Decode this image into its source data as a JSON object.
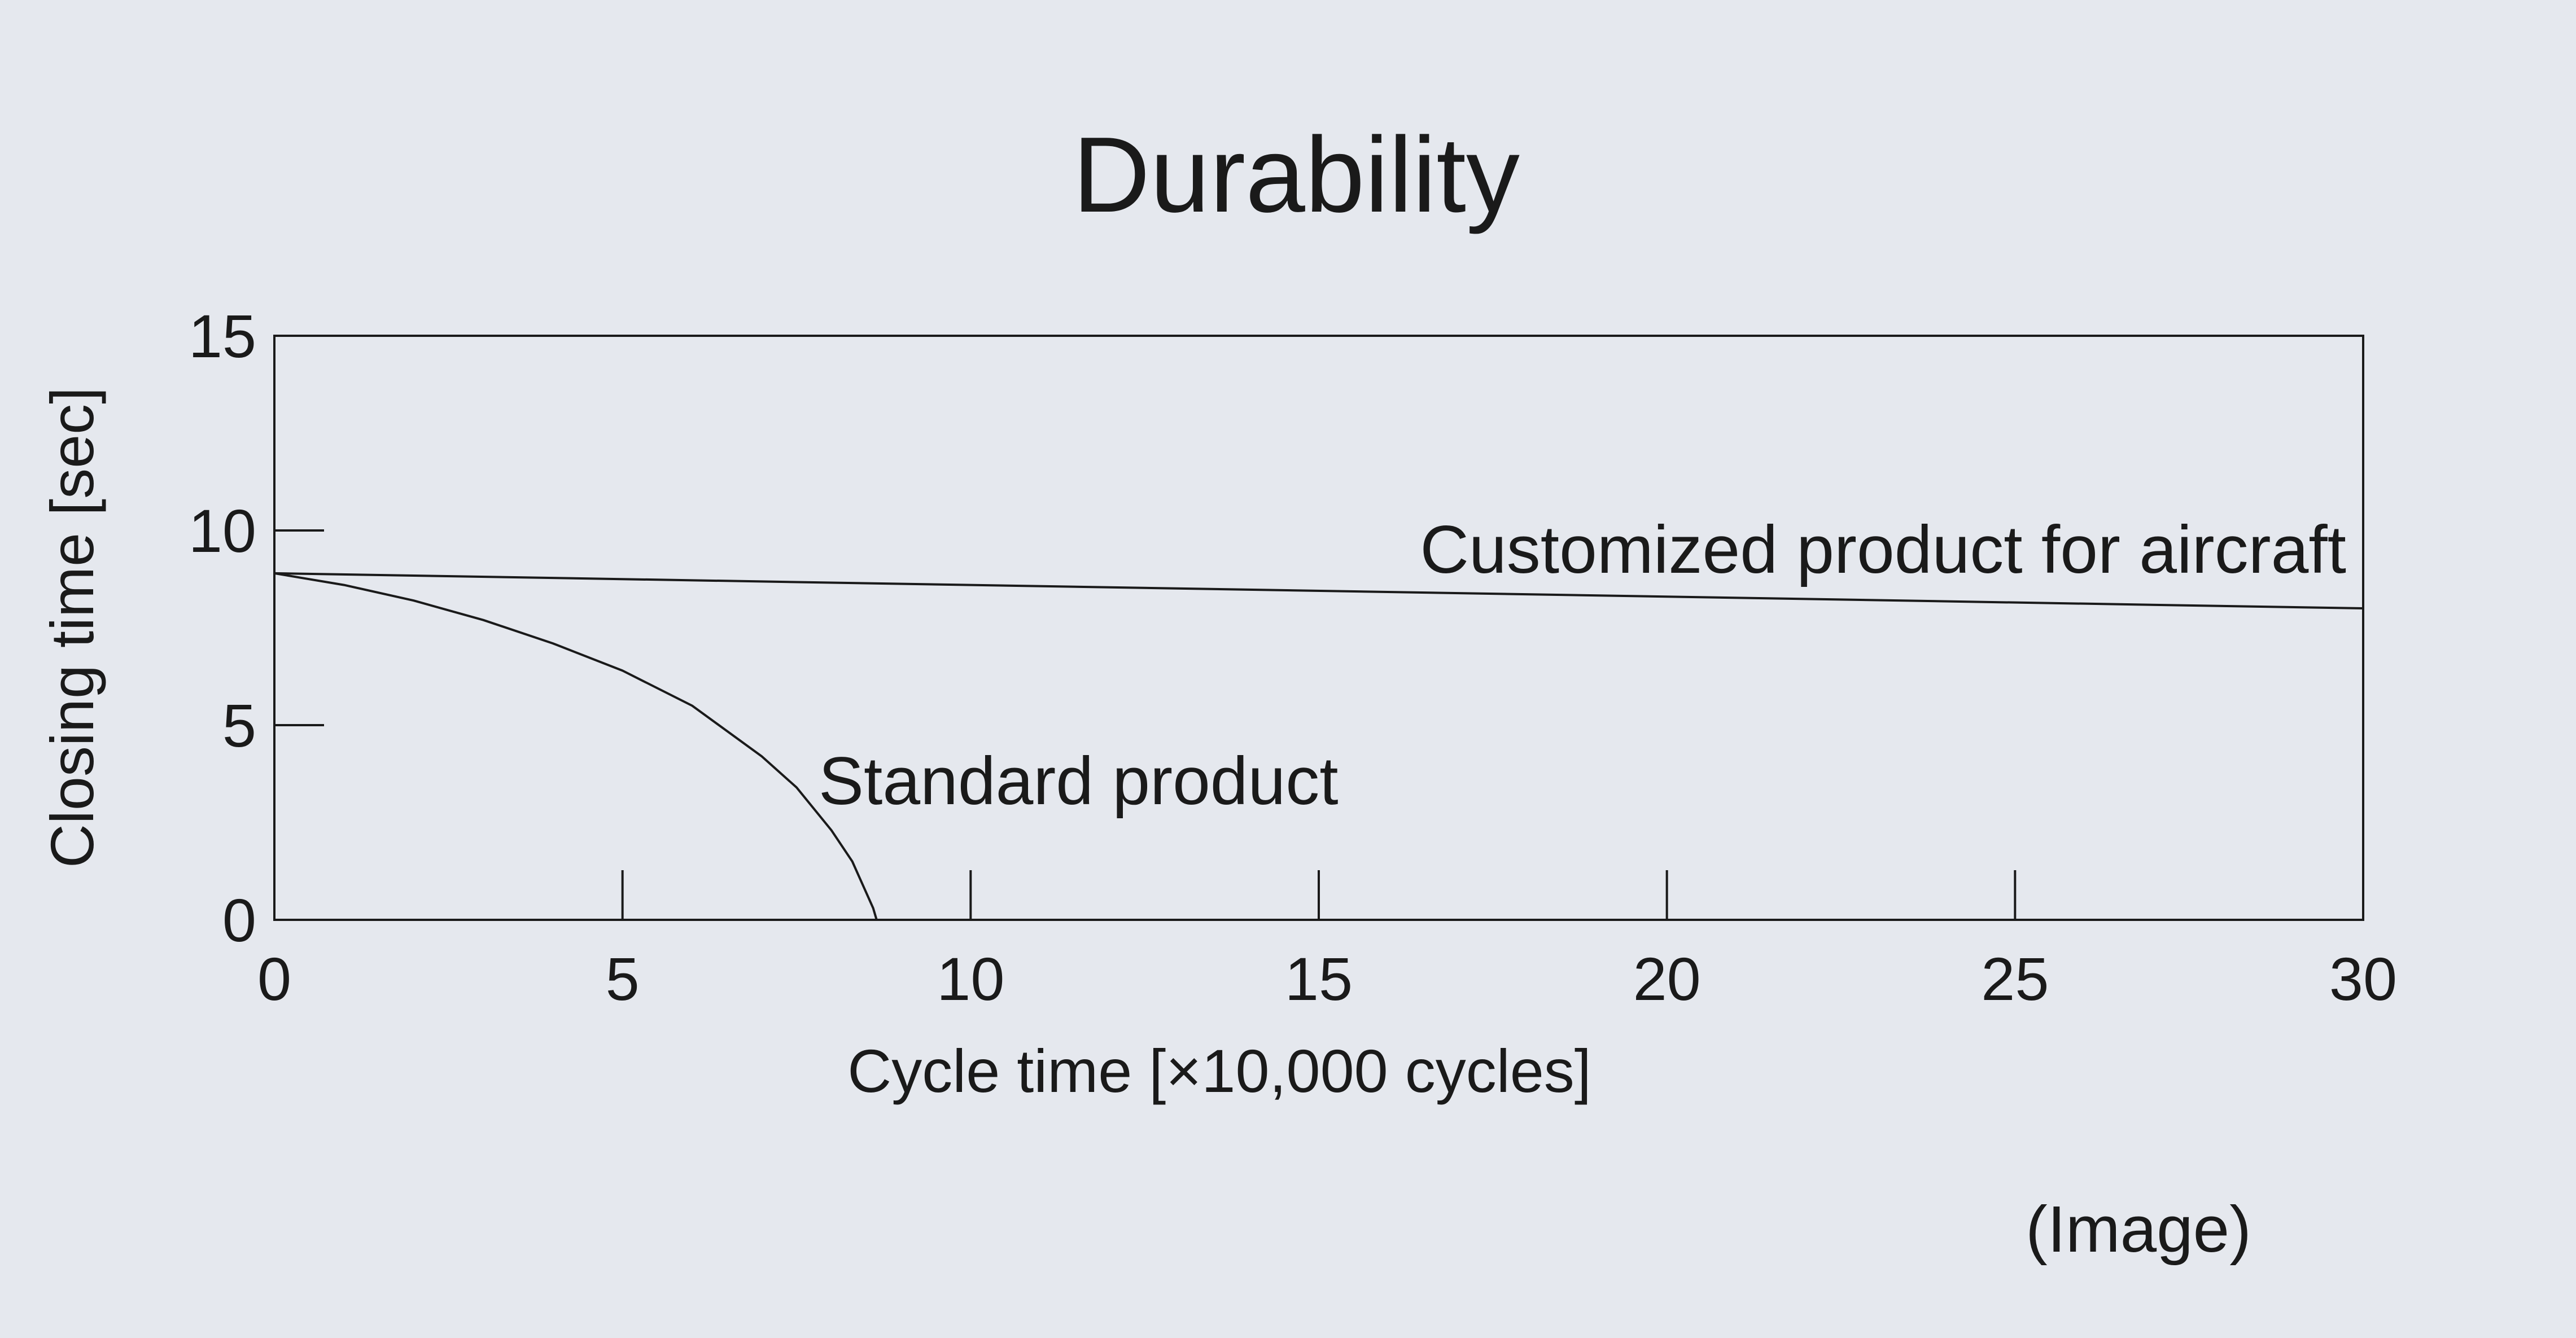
{
  "chart_data": {
    "type": "line",
    "title": "Durability",
    "xlabel": "Cycle time [×10,000 cycles]",
    "ylabel": "Closing time [sec]",
    "xlim": [
      0,
      30
    ],
    "ylim": [
      0,
      15
    ],
    "x_ticks": [
      0,
      5,
      10,
      15,
      20,
      25,
      30
    ],
    "y_ticks": [
      0,
      5,
      10,
      15
    ],
    "x_tick_labels": [
      "0",
      "5",
      "10",
      "15",
      "20",
      "25",
      "30"
    ],
    "y_tick_labels": [
      "0",
      "5",
      "10",
      "15"
    ],
    "grid": false,
    "series": [
      {
        "name": "Customized product for aircraft",
        "x": [
          0,
          30
        ],
        "y": [
          8.9,
          8.0
        ]
      },
      {
        "name": "Standard product",
        "x": [
          0,
          1,
          2,
          3,
          4,
          5,
          6,
          7,
          7.5,
          8,
          8.3,
          8.6,
          8.65
        ],
        "y": [
          8.9,
          8.6,
          8.2,
          7.7,
          7.1,
          6.4,
          5.5,
          4.2,
          3.4,
          2.3,
          1.5,
          0.3,
          0
        ]
      }
    ],
    "caption": "(Image)"
  }
}
